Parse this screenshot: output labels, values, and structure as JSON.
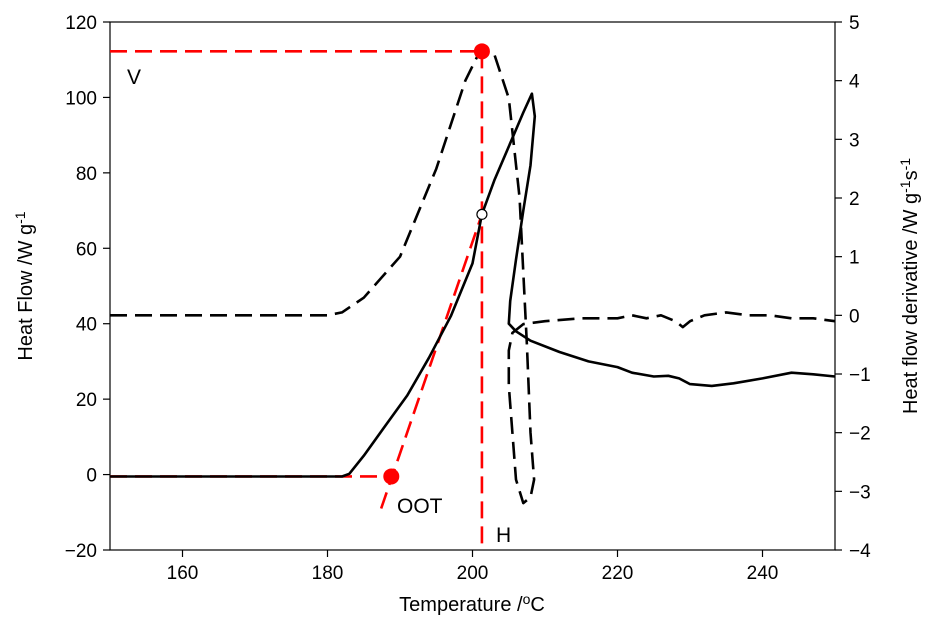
{
  "chart_data": {
    "type": "line",
    "x_axis": {
      "label_prefix": "Temperature /",
      "label_sup": "o",
      "label_suffix": "C",
      "min": 150,
      "max": 250,
      "ticks": [
        160,
        180,
        200,
        220,
        240
      ]
    },
    "y_left": {
      "label_main": "Heat Flow /W g",
      "label_sup": "-1",
      "min": -20,
      "max": 120,
      "ticks": [
        -20,
        0,
        20,
        40,
        60,
        80,
        100,
        120
      ]
    },
    "y_right": {
      "label_main": "Heat flow derivative /W g",
      "label_sup1": "-1",
      "label_mid": "s",
      "label_sup2": "-1",
      "min": -4,
      "max": 5,
      "ticks": [
        -4,
        -3,
        -2,
        -1,
        0,
        1,
        2,
        3,
        4,
        5
      ]
    },
    "grid": false,
    "legend": "none",
    "series": [
      {
        "axis": "left",
        "style": "solid",
        "color": "#000000",
        "points": [
          [
            150,
            -0.5
          ],
          [
            170,
            -0.5
          ],
          [
            182,
            -0.5
          ],
          [
            183,
            0.2
          ],
          [
            185,
            5
          ],
          [
            188,
            13
          ],
          [
            191,
            21
          ],
          [
            194,
            31
          ],
          [
            197,
            42
          ],
          [
            200,
            56
          ],
          [
            201.3,
            69
          ],
          [
            203,
            78
          ],
          [
            205,
            87
          ],
          [
            207,
            96
          ],
          [
            208.2,
            101
          ],
          [
            208.6,
            95
          ],
          [
            208,
            82
          ],
          [
            207,
            70
          ],
          [
            206,
            57
          ],
          [
            205.2,
            46
          ],
          [
            205,
            40
          ],
          [
            206,
            38
          ],
          [
            208,
            35.5
          ],
          [
            212,
            32.5
          ],
          [
            216,
            30
          ],
          [
            220,
            28.5
          ],
          [
            222,
            27
          ],
          [
            225,
            26
          ],
          [
            227,
            26.2
          ],
          [
            228.5,
            25.5
          ],
          [
            230,
            24
          ],
          [
            233,
            23.5
          ],
          [
            236,
            24.2
          ],
          [
            240,
            25.5
          ],
          [
            244,
            27
          ],
          [
            247,
            26.6
          ],
          [
            250,
            26
          ]
        ]
      },
      {
        "axis": "right",
        "style": "dashed",
        "color": "#000000",
        "points": [
          [
            150,
            0
          ],
          [
            170,
            0
          ],
          [
            180,
            0
          ],
          [
            182,
            0.05
          ],
          [
            185,
            0.3
          ],
          [
            190,
            1
          ],
          [
            195,
            2.5
          ],
          [
            199,
            4
          ],
          [
            201,
            4.5
          ],
          [
            203,
            4.45
          ],
          [
            205,
            3.7
          ],
          [
            206.5,
            2
          ],
          [
            207.5,
            -0.5
          ],
          [
            208,
            -2
          ],
          [
            208.5,
            -2.8
          ],
          [
            208,
            -3.1
          ],
          [
            207,
            -3.2
          ],
          [
            206,
            -2.8
          ],
          [
            205.5,
            -2
          ],
          [
            205,
            -1.2
          ],
          [
            205,
            -0.6
          ],
          [
            205.5,
            -0.3
          ],
          [
            207,
            -0.15
          ],
          [
            210,
            -0.1
          ],
          [
            215,
            -0.05
          ],
          [
            220,
            -0.05
          ],
          [
            222,
            0
          ],
          [
            224,
            -0.05
          ],
          [
            226,
            0
          ],
          [
            228,
            -0.1
          ],
          [
            229,
            -0.2
          ],
          [
            230,
            -0.1
          ],
          [
            232,
            0
          ],
          [
            235,
            0.05
          ],
          [
            238,
            0
          ],
          [
            241,
            0
          ],
          [
            244,
            -0.05
          ],
          [
            247,
            -0.05
          ],
          [
            250,
            -0.1
          ]
        ]
      }
    ],
    "annotations": {
      "v_label": "V",
      "h_label": "H",
      "oot_label": "OOT",
      "peak_marker": {
        "x": 201.3,
        "y_right": 4.5
      },
      "onset_marker": {
        "x": 188.8,
        "y": -0.5
      },
      "intersection_marker": {
        "x": 201.3,
        "y": 69
      },
      "baseline_y": -0.5,
      "tangent": {
        "from": [
          187.4,
          -9
        ],
        "to": [
          201.3,
          69
        ]
      },
      "highlight_color": "#ff0000"
    }
  }
}
